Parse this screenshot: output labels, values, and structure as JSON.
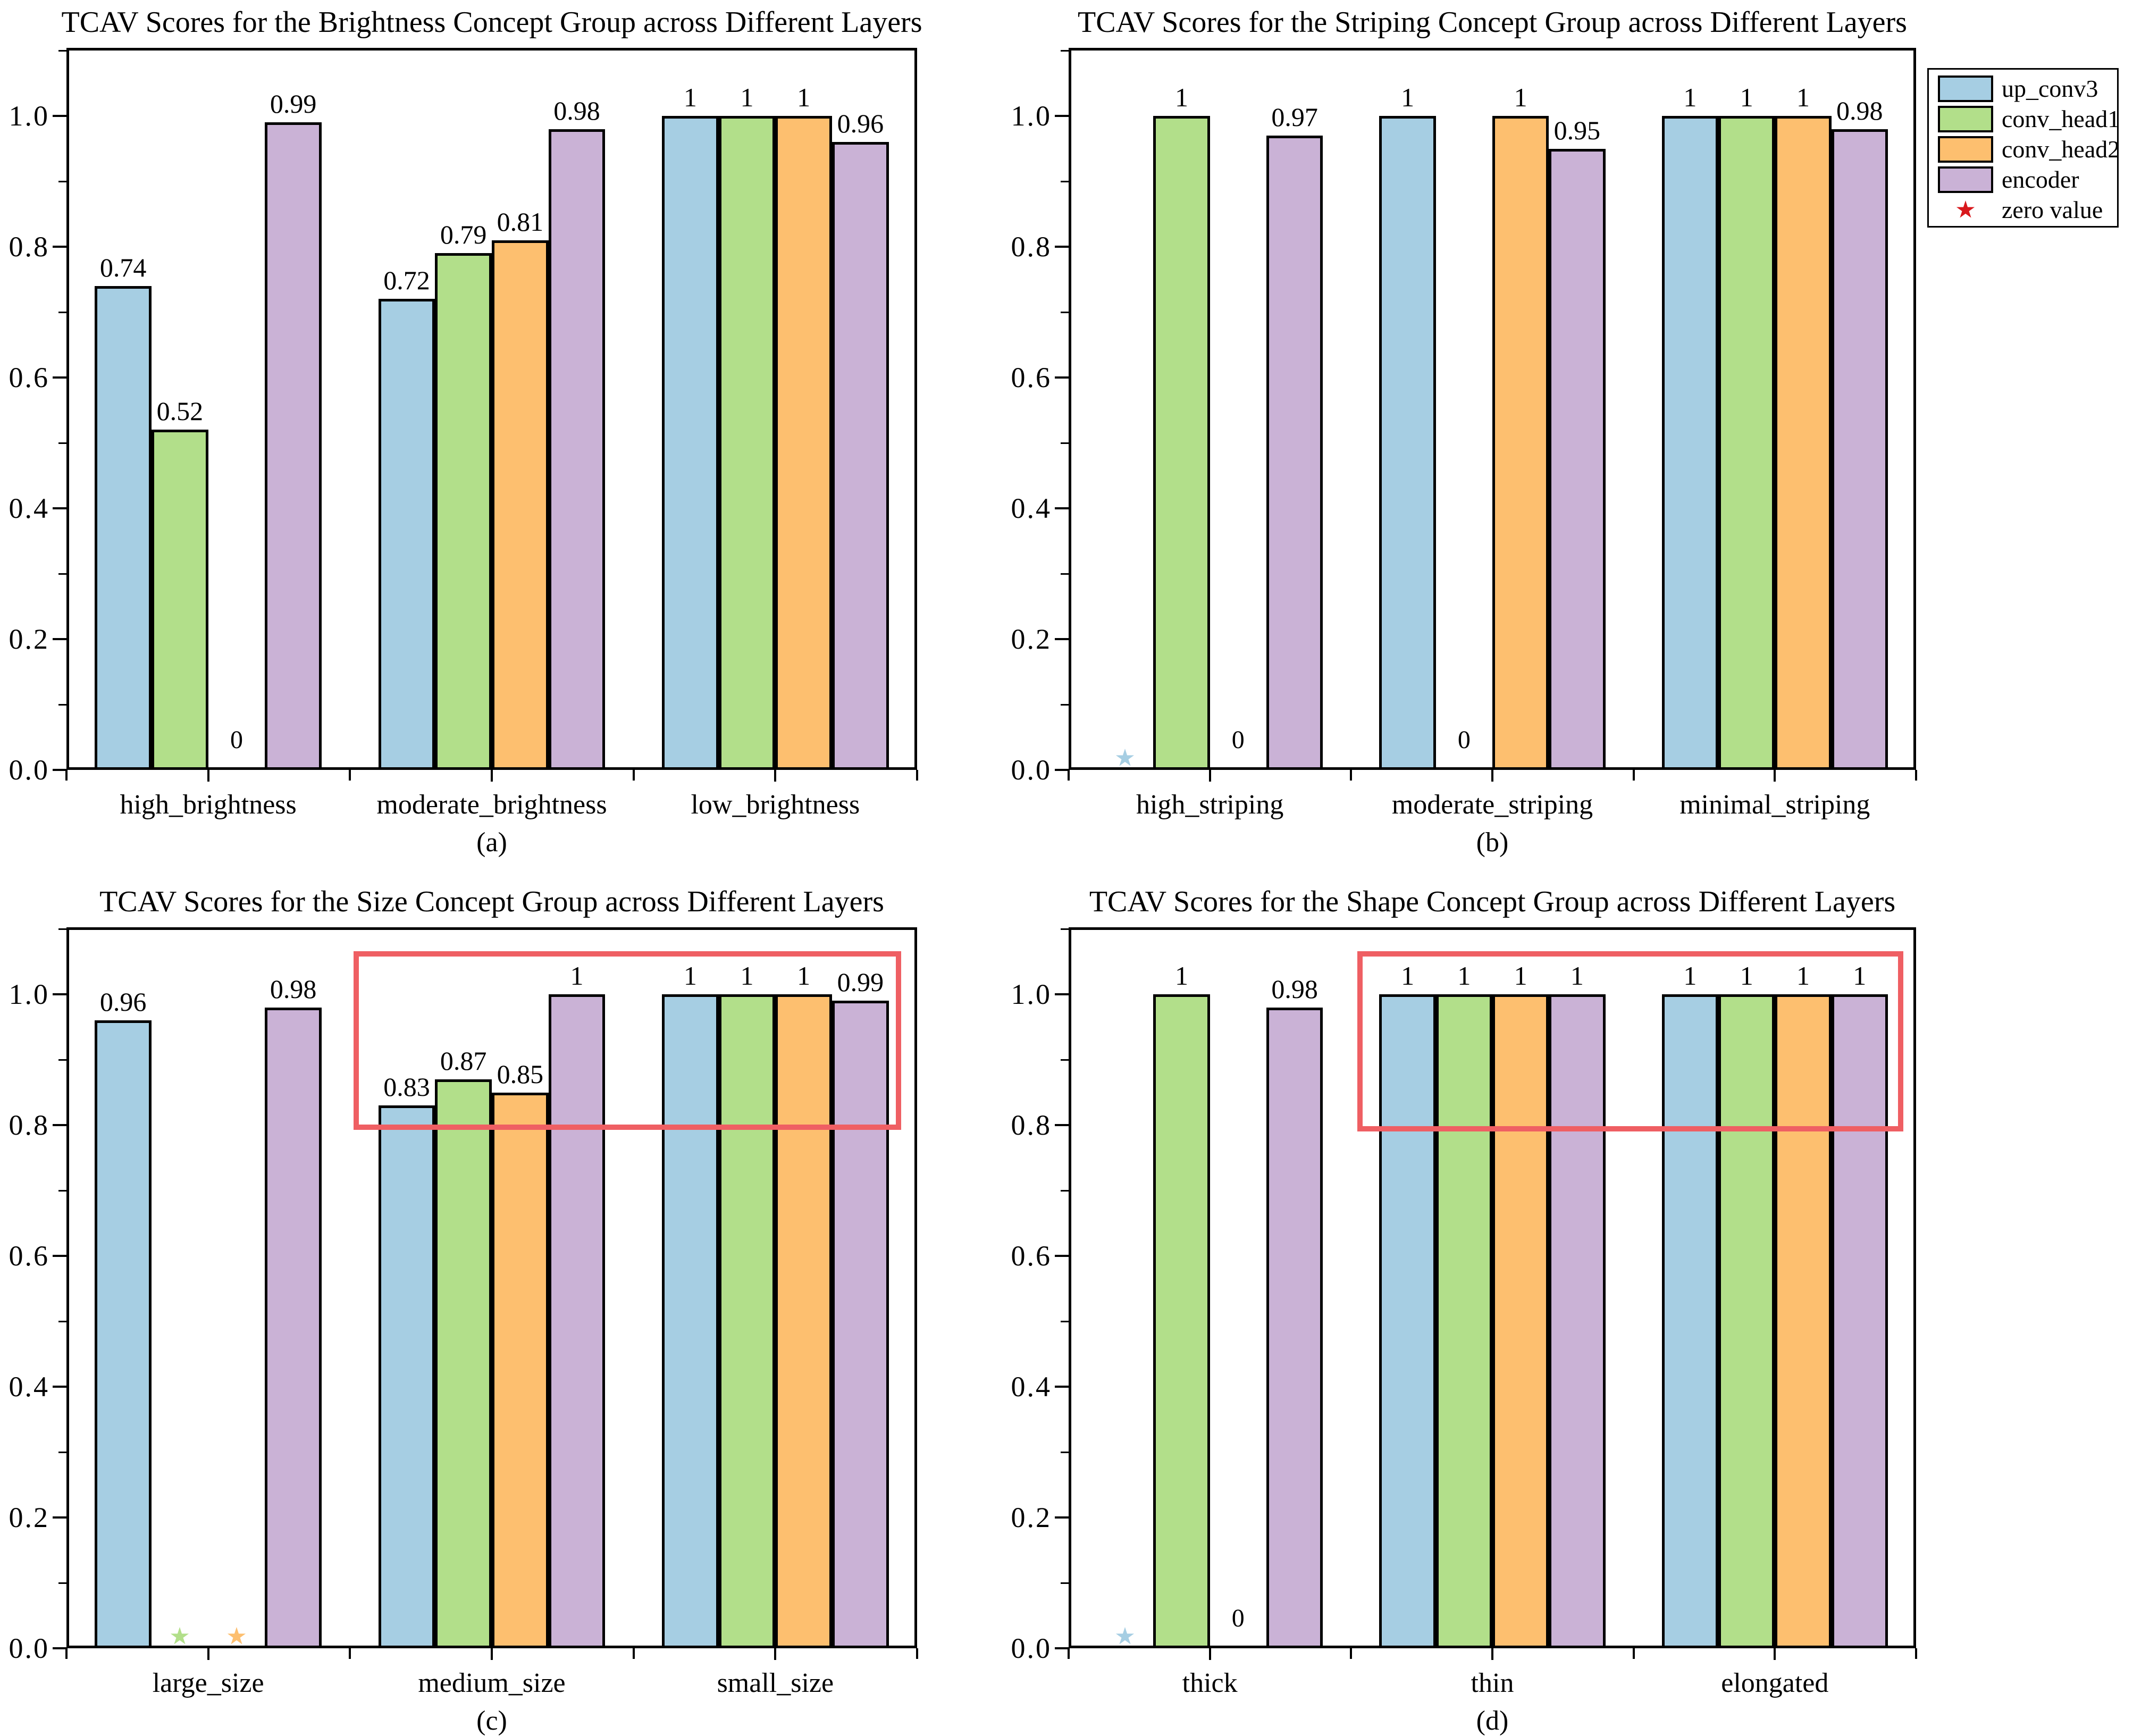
{
  "figure": {
    "background": "#ffffff"
  },
  "palette": {
    "up_conv3": "#A6CEE3",
    "conv_head1": "#B2DF8A",
    "conv_head2": "#FDBF6F",
    "encoder": "#CAB2D6",
    "bar_edge": "#000000",
    "text": "#000000",
    "legend_star": "#D8181C",
    "highlight_box": "#EF5F63"
  },
  "axis": {
    "ytick_labels": [
      "0.0",
      "0.2",
      "0.4",
      "0.6",
      "0.8",
      "1.0"
    ],
    "yticks": [
      0,
      0.2,
      0.4,
      0.6,
      0.8,
      1.0
    ],
    "minor_yticks": [
      0.1,
      0.3,
      0.5,
      0.7,
      0.9,
      1.1
    ],
    "ylim": [
      0,
      1.103
    ]
  },
  "legend": {
    "items": [
      {
        "label": "up_conv3",
        "swatch": "up_conv3"
      },
      {
        "label": "conv_head1",
        "swatch": "conv_head1"
      },
      {
        "label": "conv_head2",
        "swatch": "conv_head2"
      },
      {
        "label": "encoder",
        "swatch": "encoder"
      },
      {
        "label": "zero value",
        "marker": "star"
      }
    ]
  },
  "zero_label_text": "0",
  "chart_data": [
    {
      "type": "bar",
      "id": "a",
      "caption": "(a)",
      "title": "TCAV Scores for the Brightness Concept Group across Different Layers",
      "categories": [
        "high_brightness",
        "moderate_brightness",
        "low_brightness"
      ],
      "series": [
        {
          "name": "up_conv3",
          "values": [
            0.74,
            0.72,
            1
          ],
          "labels": [
            "0.74",
            "0.72",
            "1"
          ]
        },
        {
          "name": "conv_head1",
          "values": [
            0.52,
            0.79,
            1
          ],
          "labels": [
            "0.52",
            "0.79",
            "1"
          ]
        },
        {
          "name": "conv_head2",
          "values": [
            0,
            0.81,
            1
          ],
          "labels": [
            "0",
            "0.81",
            "1"
          ]
        },
        {
          "name": "encoder",
          "values": [
            0.99,
            0.98,
            0.96
          ],
          "labels": [
            "0.99",
            "0.98",
            "0.96"
          ]
        }
      ],
      "zero_markers": [
        {
          "series": "conv_head2",
          "category": "high_brightness",
          "style": "text"
        }
      ],
      "highlight_box": null
    },
    {
      "type": "bar",
      "id": "b",
      "caption": "(b)",
      "title": "TCAV Scores for the Striping Concept Group across Different Layers",
      "categories": [
        "high_striping",
        "moderate_striping",
        "minimal_striping"
      ],
      "series": [
        {
          "name": "up_conv3",
          "values": [
            0,
            1,
            1
          ],
          "labels": [
            "0",
            "1",
            "1"
          ]
        },
        {
          "name": "conv_head1",
          "values": [
            1,
            0,
            1
          ],
          "labels": [
            "1",
            "0",
            "1"
          ]
        },
        {
          "name": "conv_head2",
          "values": [
            0,
            1,
            1
          ],
          "labels": [
            "0",
            "1",
            "1"
          ]
        },
        {
          "name": "encoder",
          "values": [
            0.97,
            0.95,
            0.98
          ],
          "labels": [
            "0.97",
            "0.95",
            "0.98"
          ]
        }
      ],
      "zero_markers": [
        {
          "series": "up_conv3",
          "category": "high_striping",
          "style": "star"
        },
        {
          "series": "conv_head1",
          "category": "moderate_striping",
          "style": "text"
        },
        {
          "series": "conv_head2",
          "category": "high_striping",
          "style": "text"
        }
      ],
      "highlight_box": null
    },
    {
      "type": "bar",
      "id": "c",
      "caption": "(c)",
      "title": "TCAV Scores for the Size Concept Group across Different Layers",
      "categories": [
        "large_size",
        "medium_size",
        "small_size"
      ],
      "series": [
        {
          "name": "up_conv3",
          "values": [
            0.96,
            0.83,
            1
          ],
          "labels": [
            "0.96",
            "0.83",
            "1"
          ]
        },
        {
          "name": "conv_head1",
          "values": [
            0,
            0.87,
            1
          ],
          "labels": [
            "0",
            "0.87",
            "1"
          ]
        },
        {
          "name": "conv_head2",
          "values": [
            0,
            0.85,
            1
          ],
          "labels": [
            "0",
            "0.85",
            "1"
          ]
        },
        {
          "name": "encoder",
          "values": [
            0.98,
            1,
            0.99
          ],
          "labels": [
            "0.98",
            "1",
            "0.99"
          ]
        }
      ],
      "zero_markers": [
        {
          "series": "conv_head1",
          "category": "large_size",
          "style": "star"
        },
        {
          "series": "conv_head2",
          "category": "large_size",
          "style": "star"
        }
      ],
      "highlight_box": {
        "x0": 1.013,
        "x1": 2.944,
        "y0": 0.793,
        "y1": 1.066
      }
    },
    {
      "type": "bar",
      "id": "d",
      "caption": "(d)",
      "title": "TCAV Scores for the Shape Concept Group across Different Layers",
      "categories": [
        "thick",
        "thin",
        "elongated"
      ],
      "series": [
        {
          "name": "up_conv3",
          "values": [
            0,
            1,
            1
          ],
          "labels": [
            "0",
            "1",
            "1"
          ]
        },
        {
          "name": "conv_head1",
          "values": [
            1,
            1,
            1
          ],
          "labels": [
            "1",
            "1",
            "1"
          ]
        },
        {
          "name": "conv_head2",
          "values": [
            0,
            1,
            1
          ],
          "labels": [
            "0",
            "1",
            "1"
          ]
        },
        {
          "name": "encoder",
          "values": [
            0.98,
            1,
            1
          ],
          "labels": [
            "0.98",
            "1",
            "1"
          ]
        }
      ],
      "zero_markers": [
        {
          "series": "up_conv3",
          "category": "thick",
          "style": "star"
        },
        {
          "series": "conv_head2",
          "category": "thick",
          "style": "text"
        }
      ],
      "highlight_box": {
        "x0": 1.022,
        "x1": 2.955,
        "y0": 0.79,
        "y1": 1.066
      }
    }
  ]
}
